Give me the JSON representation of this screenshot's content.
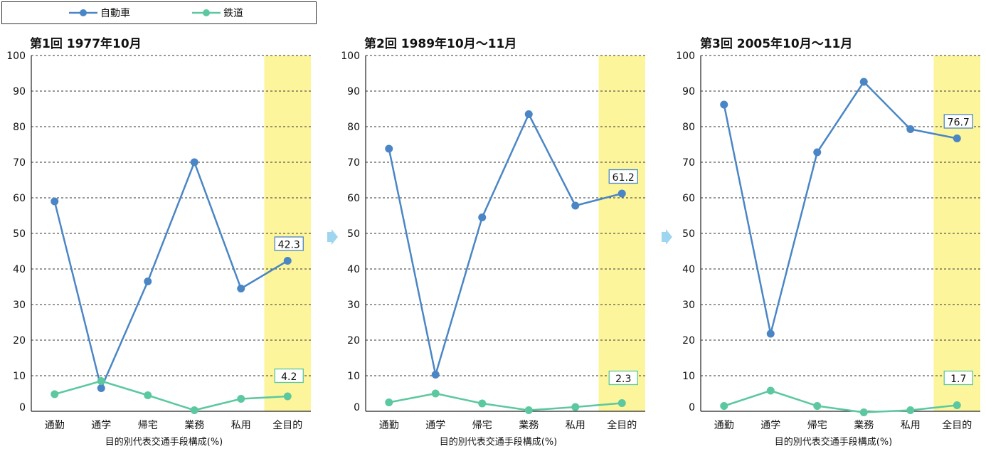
{
  "legend": {
    "items": [
      {
        "name": "自動車",
        "color": "#4a86c5"
      },
      {
        "name": "鉄道",
        "color": "#5cc8a0"
      }
    ]
  },
  "colors": {
    "highlight": "#fdf59b",
    "arrow": "#9fd6ef",
    "grid": "#333333"
  },
  "chart_data": [
    {
      "type": "line",
      "title": "第1回 1977年10月",
      "xlabel": "目的別代表交通手段構成(%)",
      "ylabel": "",
      "ylim": [
        0,
        100
      ],
      "yticks": [
        0,
        10,
        20,
        30,
        40,
        50,
        60,
        70,
        80,
        90,
        100
      ],
      "grid": true,
      "categories": [
        "通勤",
        "通学",
        "帰宅",
        "業務",
        "私用",
        "全目的"
      ],
      "highlight_category": "全目的",
      "series": [
        {
          "name": "自動車",
          "values": [
            59.0,
            6.5,
            36.5,
            70.0,
            34.5,
            42.3
          ]
        },
        {
          "name": "鉄道",
          "values": [
            4.8,
            8.5,
            4.5,
            0.3,
            3.5,
            4.2
          ]
        }
      ],
      "annotations": [
        {
          "series": "自動車",
          "category": "全目的",
          "text": "42.3"
        },
        {
          "series": "鉄道",
          "category": "全目的",
          "text": "4.2"
        }
      ]
    },
    {
      "type": "line",
      "title": "第2回 1989年10月～11月",
      "xlabel": "目的別代表交通手段構成(%)",
      "ylabel": "",
      "ylim": [
        0,
        100
      ],
      "yticks": [
        0,
        10,
        20,
        30,
        40,
        50,
        60,
        70,
        80,
        90,
        100
      ],
      "grid": true,
      "categories": [
        "通勤",
        "通学",
        "帰宅",
        "業務",
        "私用",
        "全目的"
      ],
      "highlight_category": "全目的",
      "series": [
        {
          "name": "自動車",
          "values": [
            73.8,
            10.3,
            54.5,
            83.5,
            57.8,
            61.2
          ]
        },
        {
          "name": "鉄道",
          "values": [
            2.5,
            5.0,
            2.2,
            0.3,
            1.2,
            2.3
          ]
        }
      ],
      "annotations": [
        {
          "series": "自動車",
          "category": "全目的",
          "text": "61.2"
        },
        {
          "series": "鉄道",
          "category": "全目的",
          "text": "2.3"
        }
      ]
    },
    {
      "type": "line",
      "title": "第3回 2005年10月～11月",
      "xlabel": "目的別代表交通手段構成(%)",
      "ylabel": "",
      "ylim": [
        0,
        100
      ],
      "yticks": [
        0,
        10,
        20,
        30,
        40,
        50,
        60,
        70,
        80,
        90,
        100
      ],
      "grid": true,
      "categories": [
        "通勤",
        "通学",
        "帰宅",
        "業務",
        "私用",
        "全目的"
      ],
      "highlight_category": "全目的",
      "series": [
        {
          "name": "自動車",
          "values": [
            86.2,
            21.8,
            72.8,
            92.6,
            79.3,
            76.7
          ]
        },
        {
          "name": "鉄道",
          "values": [
            1.5,
            5.8,
            1.5,
            -0.3,
            0.3,
            1.7
          ]
        }
      ],
      "annotations": [
        {
          "series": "自動車",
          "category": "全目的",
          "text": "76.7"
        },
        {
          "series": "鉄道",
          "category": "全目的",
          "text": "1.7"
        }
      ]
    }
  ]
}
